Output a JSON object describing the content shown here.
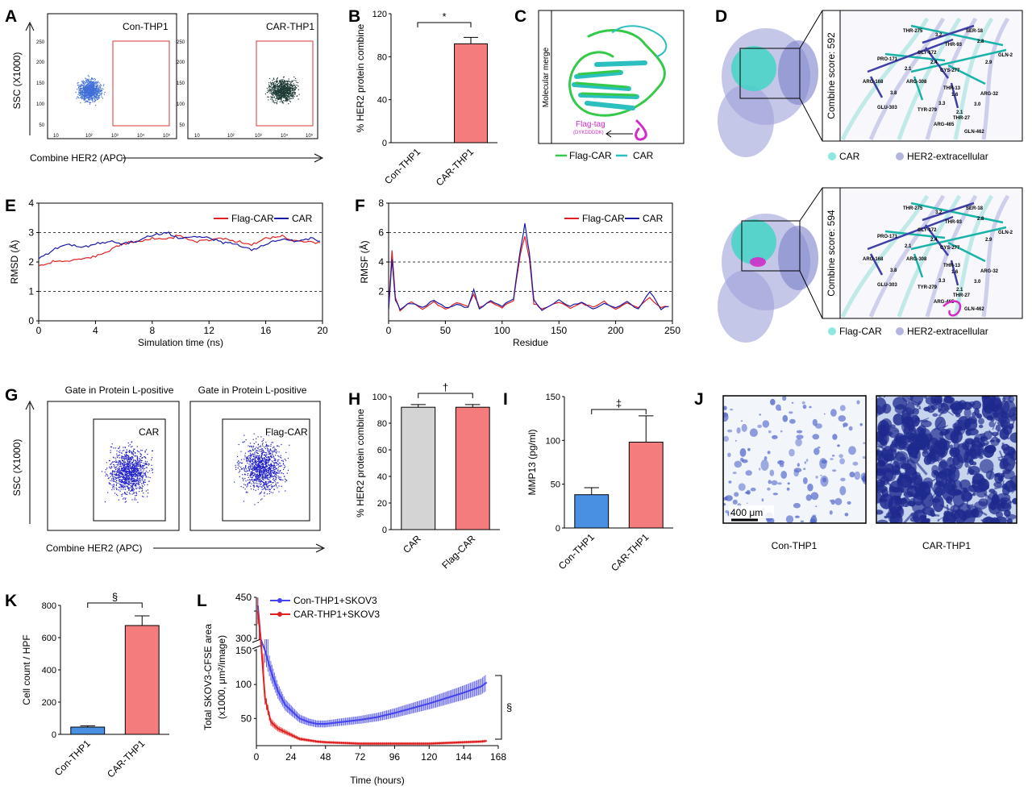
{
  "panel_labels": [
    "A",
    "B",
    "C",
    "D",
    "E",
    "F",
    "G",
    "H",
    "I",
    "J",
    "K",
    "L"
  ],
  "panelA": {
    "left_title": "Con-THP1",
    "right_title": "CAR-THP1",
    "ylabel": "SSC (X1000)",
    "xlabel": "Combine HER2 (APC)",
    "yticks": [
      "250",
      "200",
      "150",
      "100",
      "50"
    ],
    "xticks": [
      "10",
      "10²",
      "10³",
      "10⁴",
      "10⁵"
    ]
  },
  "panelC": {
    "side_label": "Molecular merge",
    "tag_label": "Flag-tag",
    "tag_seq": "(DYKDDDDK)",
    "legend": [
      "Flag-CAR",
      "CAR"
    ],
    "colors": [
      "#35c94a",
      "#2cbfbf"
    ]
  },
  "panelD": {
    "score_top": "Combine score: 592",
    "score_bottom": "Combine score: 594",
    "legend_top": [
      "CAR",
      "HER2-extracellular"
    ],
    "legend_bottom": [
      "Flag-CAR",
      "HER2-extracellular"
    ],
    "residues": [
      "THR-275",
      "SER-18",
      "PRO-171",
      "THR-93",
      "GLN-2",
      "GLY-172",
      "CYS-277",
      "ARG-168",
      "ARG-308",
      "THR-13",
      "ARG-32",
      "GLU-303",
      "TYR-279",
      "THR-27",
      "ARG-465",
      "GLN-462"
    ],
    "distances": [
      "3.2",
      "2.8",
      "2.1",
      "2.9",
      "2.4",
      "1.6",
      "3.8",
      "3.3",
      "3.0",
      "2.1"
    ]
  },
  "panelG": {
    "left_title": "Gate in Protein L-positive",
    "right_title": "Gate in Protein L-positive",
    "left_gate": "CAR",
    "right_gate": "Flag-CAR",
    "ylabel": "SSC (X1000)",
    "xlabel": "Combine HER2 (APC)"
  },
  "panelJ": {
    "scalebar": "400 μm",
    "labels": [
      "Con-THP1",
      "CAR-THP1"
    ]
  },
  "chart_data": [
    {
      "id": "B",
      "type": "bar",
      "categories": [
        "Con-THP1",
        "CAR-THP1"
      ],
      "values": [
        0,
        92
      ],
      "errors": [
        0,
        6
      ],
      "colors": [
        "#ffffff",
        "#f47c7c"
      ],
      "ylabel": "% HER2 protein combine",
      "ylim": [
        0,
        120
      ],
      "yticks": [
        "0",
        "40",
        "80",
        "120"
      ],
      "sig": "*"
    },
    {
      "id": "E",
      "type": "line",
      "xlabel": "Simulation time (ns)",
      "ylabel": "RMSD (Å)",
      "xlim": [
        0,
        20
      ],
      "ylim": [
        0,
        4
      ],
      "xticks": [
        "0",
        "4",
        "8",
        "12",
        "16",
        "20"
      ],
      "yticks": [
        "0",
        "1",
        "2",
        "3",
        "4"
      ],
      "series": [
        {
          "name": "Flag-CAR",
          "color": "#e02020",
          "x": [
            0,
            1,
            2,
            3,
            4,
            5,
            6,
            7,
            8,
            9,
            10,
            11,
            12,
            13,
            14,
            15,
            16,
            17,
            18,
            19,
            20
          ],
          "y": [
            1.9,
            2.0,
            2.05,
            2.1,
            2.2,
            2.4,
            2.6,
            2.7,
            2.8,
            2.8,
            2.9,
            2.7,
            2.75,
            2.8,
            2.7,
            2.6,
            2.8,
            2.9,
            2.7,
            2.7,
            2.6
          ]
        },
        {
          "name": "CAR",
          "color": "#1a1aa8",
          "x": [
            0,
            1,
            2,
            3,
            4,
            5,
            6,
            7,
            8,
            9,
            10,
            11,
            12,
            13,
            14,
            15,
            16,
            17,
            18,
            19,
            20
          ],
          "y": [
            2.1,
            2.4,
            2.6,
            2.5,
            2.6,
            2.7,
            2.6,
            2.7,
            2.9,
            3.0,
            2.8,
            2.9,
            2.8,
            2.7,
            2.6,
            2.4,
            2.6,
            2.8,
            2.7,
            2.8,
            2.7
          ]
        }
      ]
    },
    {
      "id": "F",
      "type": "line",
      "xlabel": "Residue",
      "ylabel": "RMSF (Å)",
      "xlim": [
        0,
        250
      ],
      "ylim": [
        0,
        8
      ],
      "xticks": [
        "0",
        "50",
        "100",
        "150",
        "200",
        "250"
      ],
      "yticks": [
        "2",
        "4",
        "6",
        "8"
      ],
      "series": [
        {
          "name": "Flag-CAR",
          "color": "#e02020",
          "x": [
            0,
            3,
            6,
            10,
            20,
            30,
            40,
            50,
            60,
            70,
            75,
            80,
            90,
            100,
            110,
            116,
            120,
            124,
            128,
            135,
            150,
            160,
            170,
            180,
            190,
            200,
            210,
            220,
            230,
            240,
            250
          ],
          "y": [
            0.8,
            4.8,
            1.6,
            0.7,
            1.3,
            0.8,
            1.3,
            0.8,
            1.2,
            1.0,
            1.8,
            0.9,
            1.3,
            0.9,
            1.4,
            4.5,
            5.8,
            4.2,
            1.2,
            0.8,
            1.3,
            0.9,
            1.2,
            0.9,
            1.3,
            0.8,
            1.2,
            0.9,
            1.6,
            0.9,
            1.0
          ]
        },
        {
          "name": "CAR",
          "color": "#1a1aa8",
          "x": [
            0,
            3,
            6,
            10,
            20,
            30,
            40,
            50,
            60,
            70,
            75,
            80,
            90,
            100,
            110,
            116,
            120,
            124,
            128,
            135,
            150,
            160,
            170,
            180,
            190,
            200,
            210,
            220,
            230,
            240,
            250
          ],
          "y": [
            0.7,
            4.2,
            1.4,
            0.8,
            1.2,
            0.9,
            1.4,
            0.9,
            1.1,
            0.9,
            2.1,
            0.8,
            1.4,
            1.0,
            1.5,
            4.8,
            6.6,
            4.6,
            1.4,
            0.7,
            1.4,
            1.0,
            1.3,
            0.8,
            1.2,
            0.9,
            1.3,
            0.8,
            2.0,
            0.8,
            1.1
          ]
        }
      ]
    },
    {
      "id": "H",
      "type": "bar",
      "categories": [
        "CAR",
        "Flag-CAR"
      ],
      "values": [
        92,
        92
      ],
      "errors": [
        2,
        2
      ],
      "colors": [
        "#d4d4d4",
        "#f47c7c"
      ],
      "ylabel": "% HER2 protein combine",
      "ylim": [
        0,
        100
      ],
      "yticks": [
        "0",
        "20",
        "40",
        "60",
        "80",
        "100"
      ],
      "sig": "†"
    },
    {
      "id": "I",
      "type": "bar",
      "categories": [
        "Con-THP1",
        "CAR-THP1"
      ],
      "values": [
        38,
        98
      ],
      "errors": [
        8,
        30
      ],
      "colors": [
        "#4a90e2",
        "#f47c7c"
      ],
      "ylabel": "MMP13 (pg/ml)",
      "ylim": [
        0,
        150
      ],
      "yticks": [
        "0",
        "50",
        "100",
        "150"
      ],
      "sig": "‡"
    },
    {
      "id": "K",
      "type": "bar",
      "categories": [
        "Con-THP1",
        "CAR-THP1"
      ],
      "values": [
        45,
        675
      ],
      "errors": [
        8,
        60
      ],
      "colors": [
        "#4a90e2",
        "#f47c7c"
      ],
      "ylabel": "Cell count / HPF",
      "ylim": [
        0,
        800
      ],
      "yticks": [
        "0",
        "200",
        "400",
        "600",
        "800"
      ],
      "sig": "§"
    },
    {
      "id": "L",
      "type": "line",
      "xlabel": "Time (hours)",
      "ylabel": "Total SKOV3-CFSE area",
      "ylabel2": "(x1000, μm²/image)",
      "xticks": [
        "0",
        "24",
        "48",
        "72",
        "96",
        "120",
        "144",
        "168"
      ],
      "yticks_top": [
        "300",
        "350",
        "400",
        "450"
      ],
      "yticks_bottom": [
        "50",
        "100",
        "150"
      ],
      "sig": "§",
      "series": [
        {
          "name": "Con-THP1+SKOV3",
          "color": "#4444ee",
          "x": [
            1,
            3,
            6,
            10,
            15,
            20,
            25,
            30,
            36,
            42,
            48,
            60,
            72,
            84,
            96,
            108,
            120,
            132,
            144,
            156,
            160
          ],
          "y": [
            420,
            250,
            150,
            120,
            90,
            70,
            60,
            50,
            45,
            42,
            42,
            45,
            48,
            52,
            58,
            65,
            72,
            80,
            88,
            97,
            103
          ]
        },
        {
          "name": "CAR-THP1+SKOV3",
          "color": "#e02020",
          "x": [
            1,
            3,
            6,
            10,
            15,
            20,
            25,
            30,
            36,
            42,
            48,
            60,
            72,
            84,
            96,
            108,
            120,
            132,
            144,
            156,
            160
          ],
          "y": [
            400,
            230,
            80,
            45,
            35,
            30,
            25,
            20,
            18,
            16,
            15,
            14,
            13,
            13,
            13,
            13,
            13,
            14,
            15,
            16,
            17
          ]
        }
      ]
    }
  ]
}
